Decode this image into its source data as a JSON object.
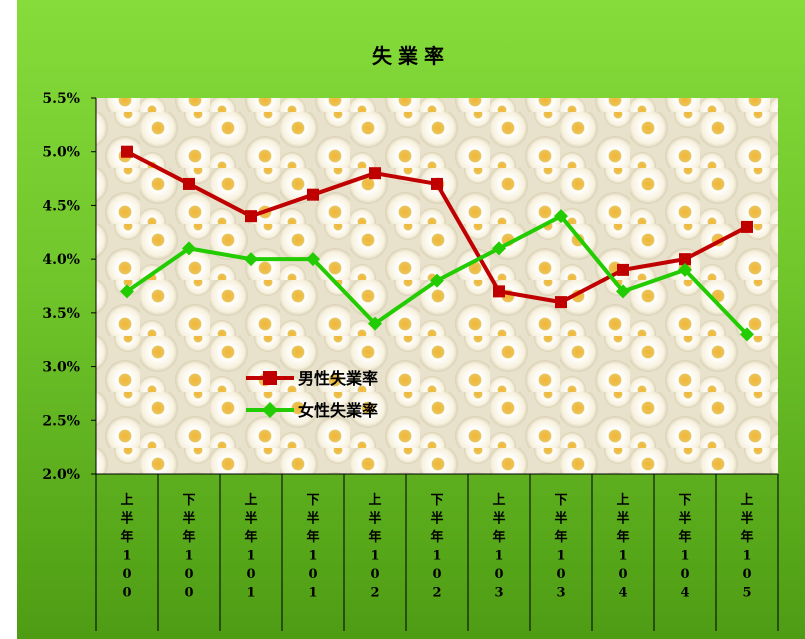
{
  "chart_data": {
    "type": "line",
    "title": "失業率",
    "xlabel": "",
    "ylabel": "",
    "categories": [
      "上半年100",
      "下半年100",
      "上半年101",
      "下半年101",
      "上半年102",
      "下半年102",
      "上半年103",
      "下半年103",
      "上半年104",
      "下半年104",
      "上半年105"
    ],
    "yticks": [
      "2.0%",
      "2.5%",
      "3.0%",
      "3.5%",
      "4.0%",
      "4.5%",
      "5.0%",
      "5.5%"
    ],
    "ylim": [
      0.02,
      0.055
    ],
    "grid": false,
    "legend_position": "center-left",
    "series": [
      {
        "name": "男性失業率",
        "values": [
          0.05,
          0.047,
          0.044,
          0.046,
          0.048,
          0.047,
          0.037,
          0.036,
          0.039,
          0.04,
          0.043
        ],
        "color": "#c00000",
        "marker": "square"
      },
      {
        "name": "女性失業率",
        "values": [
          0.037,
          0.041,
          0.04,
          0.04,
          0.034,
          0.038,
          0.041,
          0.044,
          0.037,
          0.039,
          0.033
        ],
        "color": "#22cc00",
        "marker": "diamond"
      }
    ]
  }
}
